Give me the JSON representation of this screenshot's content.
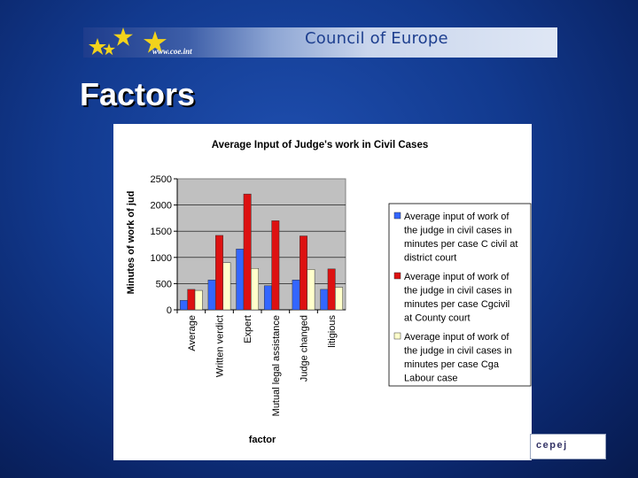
{
  "header": {
    "organization": "Council of Europe",
    "url": "www.coe.int",
    "star_icons": [
      "star-icon",
      "star-icon",
      "star-icon",
      "star-icon"
    ],
    "star_color": "#f2d21c"
  },
  "slide": {
    "title": "Factors"
  },
  "footer": {
    "logo_text": "cepej"
  },
  "chart_data": {
    "type": "bar",
    "title": "Average Input of Judge's work in Civil Cases",
    "xlabel": "factor",
    "ylabel": "Minutes of work of jud",
    "ylim": [
      0,
      2500
    ],
    "yticks": [
      0,
      500,
      1000,
      1500,
      2000,
      2500
    ],
    "grid": true,
    "plot_background": "#c0c0c0",
    "legend_position": "right",
    "categories": [
      "Average",
      "Written verdict",
      "Expert",
      "Mutual legal assistance",
      "Judge changed",
      "litigious"
    ],
    "series": [
      {
        "name": "Average input of work of the judge in civil cases in minutes per case C civil at district court",
        "color": "#3366ff",
        "values": [
          180,
          570,
          1160,
          460,
          570,
          390
        ]
      },
      {
        "name": "Average input of work of the judge in civil cases in minutes per case Cgcivil at County court",
        "color": "#dd1111",
        "values": [
          390,
          1420,
          2210,
          1700,
          1410,
          780
        ]
      },
      {
        "name": "Average input of work of the judge in civil cases in minutes per case Cga Labour case",
        "color": "#ffffcc",
        "values": [
          370,
          900,
          790,
          0,
          770,
          430
        ]
      }
    ]
  }
}
